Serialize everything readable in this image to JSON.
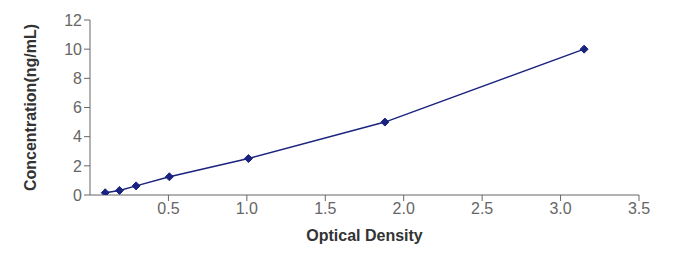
{
  "chart_data": {
    "type": "line",
    "x": [
      0.097,
      0.188,
      0.294,
      0.506,
      1.01,
      1.88,
      3.15
    ],
    "values": [
      0.156,
      0.313,
      0.625,
      1.25,
      2.5,
      5.0,
      10.0
    ],
    "color": "#1a237e",
    "marker": "diamond",
    "xlabel": "Optical Density",
    "ylabel": "Concentration(ng/mL)",
    "xlim": [
      0,
      3.5
    ],
    "ylim": [
      0,
      12
    ],
    "xticks": [
      0.5,
      {
        "value": 1.0,
        "label": "1.0"
      },
      1.5,
      {
        "value": 2.0,
        "label": "2.0"
      },
      2.5,
      {
        "value": 3.0,
        "label": "3.0"
      },
      3.5
    ],
    "yticks": [
      0,
      2,
      4,
      6,
      8,
      10,
      12
    ]
  }
}
